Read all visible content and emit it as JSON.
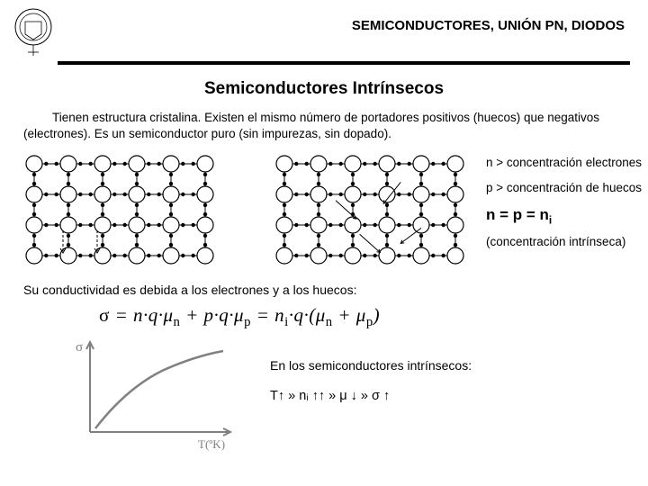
{
  "header": {
    "breadcrumb": "SEMICONDUCTORES, UNIÓN PN, DIODOS"
  },
  "title": "Semiconductores Intrínsecos",
  "intro": "Tienen estructura cristalina. Existen el mismo número de portadores positivos (huecos) que negativos (electrones). Es un semiconductor puro (sin impurezas, sin dopado).",
  "defs": {
    "n_line": "n > concentración electrones",
    "p_line": "p > concentración de huecos",
    "eq_prefix": "n = p = n",
    "eq_sub": "i",
    "intr": "(concentración intrínseca)"
  },
  "cond_line": "Su conductividad es debida a los electrones y a los huecos:",
  "formula": {
    "text": "σ = n·q·μₙ + p·q·μₚ = nᵢ·q·(μₙ + μₚ)"
  },
  "curve": {
    "y_label": "σ",
    "x_label": "T(ºK)",
    "axis_color": "#808080",
    "curve_color": "#808080"
  },
  "right": {
    "l1": "En los semiconductores intrínsecos:",
    "l2": "T↑ » nᵢ ↑↑ » μ ↓ » σ ↑"
  },
  "lattice": {
    "rows": 4,
    "cols": 6,
    "atom_r": 9,
    "dot_r": 2.2,
    "stroke": "#000000"
  }
}
